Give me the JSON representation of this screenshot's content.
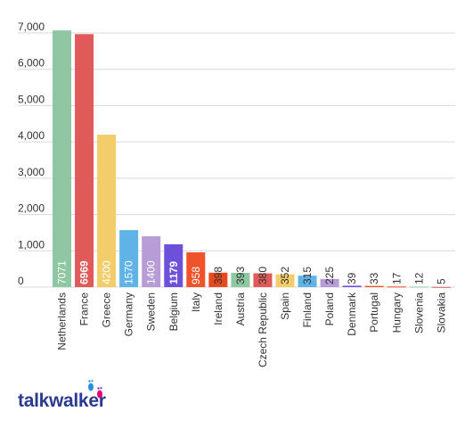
{
  "chart_data": {
    "type": "bar",
    "title": "",
    "xlabel": "",
    "ylabel": "",
    "ylim": [
      0,
      7000
    ],
    "yticks": [
      {
        "value": 0,
        "label": "0"
      },
      {
        "value": 1000,
        "label": "1,000"
      },
      {
        "value": 2000,
        "label": "2,000"
      },
      {
        "value": 3000,
        "label": "3,000"
      },
      {
        "value": 4000,
        "label": "4,000"
      },
      {
        "value": 5000,
        "label": "5,000"
      },
      {
        "value": 6000,
        "label": "6,000"
      },
      {
        "value": 7000,
        "label": "7,000"
      }
    ],
    "grid": true,
    "categories": [
      "Netherlands",
      "France",
      "Greece",
      "Germany",
      "Sweden",
      "Belgium",
      "Italy",
      "Ireland",
      "Austria",
      "Czech Republic",
      "Spain",
      "Finland",
      "Poland",
      "Denmark",
      "Portugal",
      "Hungary",
      "Slovenia",
      "Slovakia"
    ],
    "values": [
      7071,
      6969,
      4200,
      1570,
      1400,
      1179,
      958,
      398,
      393,
      380,
      352,
      315,
      225,
      39,
      33,
      17,
      12,
      5
    ],
    "bar_colors": [
      "#8ec7a1",
      "#e05a5a",
      "#f2cd6a",
      "#5fb3e6",
      "#b79cd8",
      "#6e51db",
      "#f0522a",
      "#e84a1f",
      "#8ec7a1",
      "#e05a5a",
      "#f2cd6a",
      "#5fb3e6",
      "#b79cd8",
      "#6e51db",
      "#f0522a",
      "#e84a1f",
      "#8ec7a1",
      "#e05a5a"
    ],
    "label_colors_inside": [
      "#ffffff",
      "#ffffff",
      "#ffffff",
      "#ffffff",
      "#ffffff",
      "#ffffff",
      "#ffffff"
    ],
    "gridline_color": "#d9d9d9",
    "axis_text_color": "#333333"
  },
  "branding": {
    "logo_text": "talkwalker",
    "logo_color": "#2a3b8f",
    "accent_colors": [
      "#e0007a",
      "#7a2fd0",
      "#2a8fe0"
    ]
  }
}
